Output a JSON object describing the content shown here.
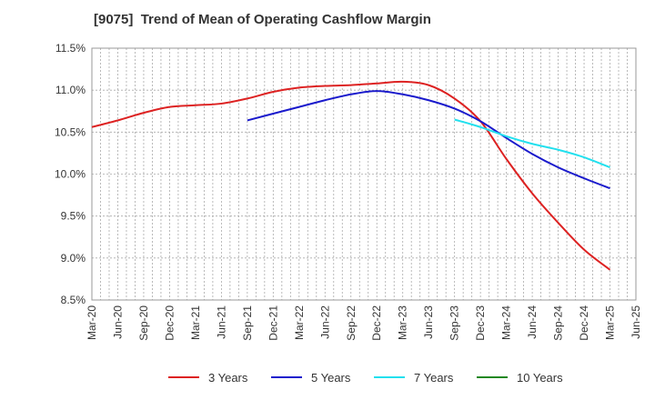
{
  "title": "[9075]  Trend of Mean of Operating Cashflow Margin",
  "chart_data": {
    "type": "line",
    "title": "[9075]  Trend of Mean of Operating Cashflow Margin",
    "xlabel": "",
    "ylabel": "",
    "x_ticks": [
      "Mar-20",
      "Jun-20",
      "Sep-20",
      "Dec-20",
      "Mar-21",
      "Jun-21",
      "Sep-21",
      "Dec-21",
      "Mar-22",
      "Jun-22",
      "Sep-22",
      "Dec-22",
      "Mar-23",
      "Jun-23",
      "Sep-23",
      "Dec-23",
      "Mar-24",
      "Jun-24",
      "Sep-24",
      "Dec-24",
      "Mar-25",
      "Jun-25"
    ],
    "y_ticks": [
      "8.5%",
      "9.0%",
      "9.5%",
      "10.0%",
      "10.5%",
      "11.0%",
      "11.5%"
    ],
    "ylim": [
      8.5,
      11.5
    ],
    "grid": true,
    "legend_position": "bottom",
    "series": [
      {
        "name": "3 Years",
        "color": "#dd2222",
        "x": [
          "Mar-20",
          "Jun-20",
          "Sep-20",
          "Dec-20",
          "Mar-21",
          "Jun-21",
          "Sep-21",
          "Dec-21",
          "Mar-22",
          "Jun-22",
          "Sep-22",
          "Dec-22",
          "Mar-23",
          "Jun-23",
          "Sep-23",
          "Dec-23",
          "Mar-24",
          "Jun-24",
          "Sep-24",
          "Dec-24",
          "Mar-25"
        ],
        "values": [
          10.56,
          10.64,
          10.73,
          10.8,
          10.82,
          10.84,
          10.9,
          10.98,
          11.03,
          11.05,
          11.06,
          11.08,
          11.1,
          11.06,
          10.9,
          10.63,
          10.18,
          9.77,
          9.42,
          9.1,
          8.86
        ]
      },
      {
        "name": "5 Years",
        "color": "#1a1acc",
        "x": [
          "Sep-21",
          "Dec-21",
          "Mar-22",
          "Jun-22",
          "Sep-22",
          "Dec-22",
          "Mar-23",
          "Jun-23",
          "Sep-23",
          "Dec-23",
          "Mar-24",
          "Jun-24",
          "Sep-24",
          "Dec-24",
          "Mar-25"
        ],
        "values": [
          10.64,
          10.72,
          10.8,
          10.88,
          10.95,
          10.99,
          10.95,
          10.88,
          10.78,
          10.63,
          10.43,
          10.24,
          10.08,
          9.95,
          9.83
        ]
      },
      {
        "name": "7 Years",
        "color": "#22e0ee",
        "x": [
          "Sep-23",
          "Dec-23",
          "Mar-24",
          "Jun-24",
          "Sep-24",
          "Dec-24",
          "Mar-25"
        ],
        "values": [
          10.65,
          10.56,
          10.45,
          10.36,
          10.29,
          10.2,
          10.08
        ]
      },
      {
        "name": "10 Years",
        "color": "#228822",
        "x": [],
        "values": []
      }
    ]
  }
}
